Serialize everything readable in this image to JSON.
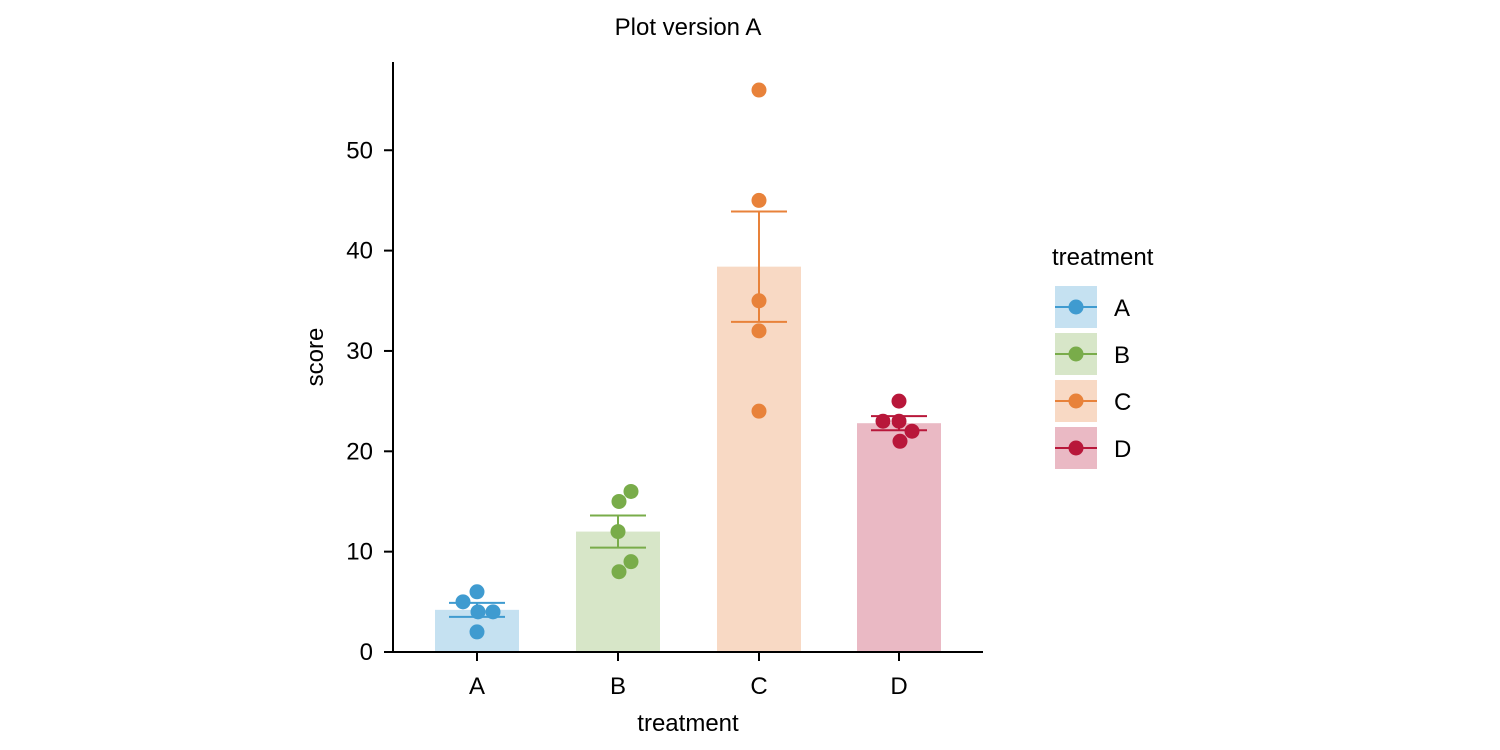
{
  "chart_data": {
    "type": "bar",
    "title": "Plot version A",
    "xlabel": "treatment",
    "ylabel": "score",
    "ylim": [
      0,
      59
    ],
    "yticks": [
      0,
      10,
      20,
      30,
      40,
      50
    ],
    "categories": [
      "A",
      "B",
      "C",
      "D"
    ],
    "means": [
      4.2,
      12.0,
      38.4,
      22.8
    ],
    "error_low": [
      3.5,
      10.4,
      32.9,
      22.1
    ],
    "error_high": [
      4.9,
      13.6,
      43.9,
      23.5
    ],
    "points": [
      [
        6,
        5,
        4,
        4,
        2
      ],
      [
        16,
        15,
        12,
        9,
        8
      ],
      [
        56,
        45,
        35,
        32,
        24
      ],
      [
        25,
        23,
        23,
        22,
        21
      ]
    ],
    "colors": [
      "#3f9bd0",
      "#79ac4a",
      "#e8823a",
      "#b8173a"
    ],
    "legend": {
      "title": "treatment",
      "entries": [
        "A",
        "B",
        "C",
        "D"
      ],
      "placement": "right"
    },
    "grid": false
  }
}
